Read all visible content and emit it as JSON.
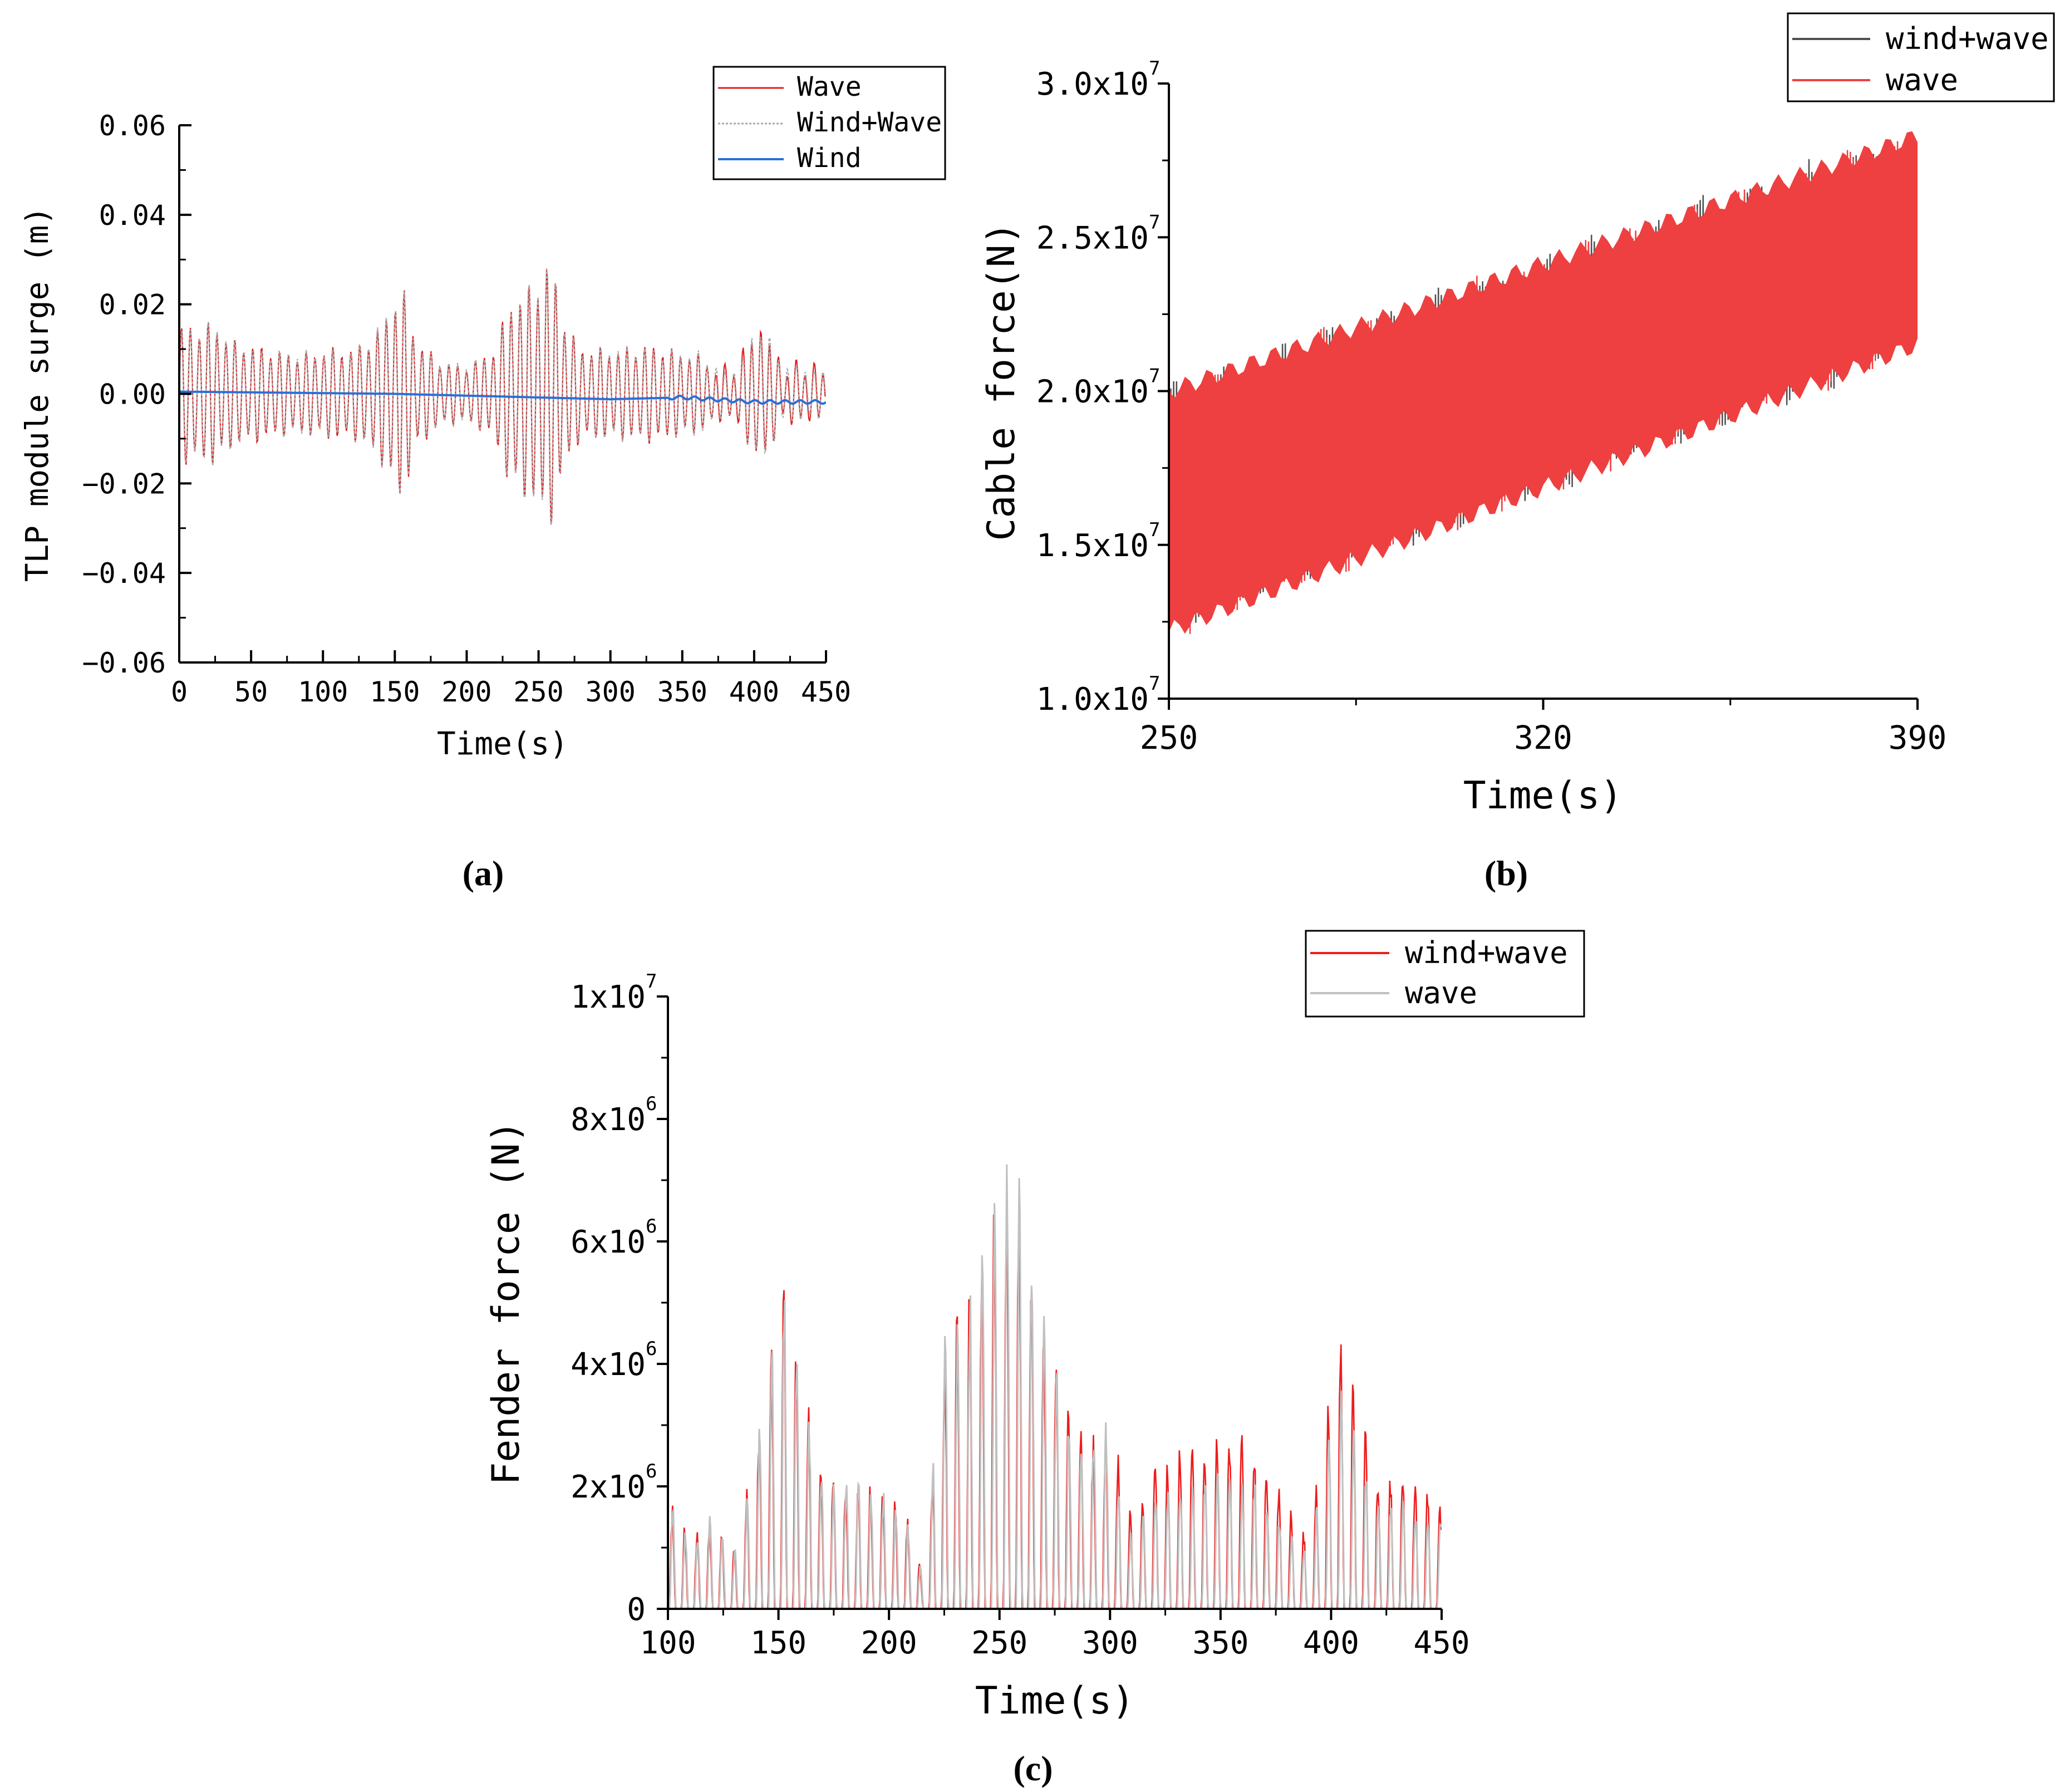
{
  "chart_data": [
    {
      "id": "a",
      "type": "line",
      "caption": "(a)",
      "xlabel": "Time(s)",
      "ylabel": "TLP module surge (m)",
      "xlim": [
        0,
        450
      ],
      "ylim": [
        -0.06,
        0.06
      ],
      "xticks": [
        "0",
        "50",
        "100",
        "150",
        "200",
        "250",
        "300",
        "350",
        "400",
        "450"
      ],
      "yticks": [
        "0.06",
        "0.04",
        "0.02",
        "0.00",
        "−0.02",
        "−0.04",
        "−0.06"
      ],
      "series": [
        {
          "name": "Wave",
          "color": "#e02020"
        },
        {
          "name": "Wind+Wave",
          "color": "#a8a8a8"
        },
        {
          "name": "Wind",
          "color": "#2a6fd8"
        }
      ],
      "envelope": {
        "x": [
          0,
          10,
          25,
          40,
          60,
          80,
          100,
          120,
          140,
          150,
          155,
          165,
          180,
          200,
          220,
          230,
          245,
          255,
          260,
          270,
          280,
          300,
          320,
          340,
          360,
          380,
          390,
          400,
          405,
          420,
          440,
          450
        ],
        "amplitude": [
          0.015,
          0.016,
          0.017,
          0.012,
          0.01,
          0.01,
          0.01,
          0.01,
          0.016,
          0.024,
          0.025,
          0.012,
          0.008,
          0.007,
          0.01,
          0.022,
          0.026,
          0.031,
          0.03,
          0.015,
          0.01,
          0.011,
          0.011,
          0.01,
          0.01,
          0.005,
          0.007,
          0.015,
          0.017,
          0.007,
          0.006,
          0.005
        ]
      },
      "wind_drift": {
        "x": [
          0,
          150,
          250,
          300,
          350,
          400,
          450
        ],
        "y": [
          0.0005,
          0.0,
          -0.0008,
          -0.0012,
          -0.0008,
          -0.0018,
          -0.0018
        ]
      }
    },
    {
      "id": "b",
      "type": "line",
      "caption": "(b)",
      "xlabel": "Time(s)",
      "ylabel": "Cable force(N)",
      "xlim": [
        250,
        390
      ],
      "ylim": [
        10000000,
        30000000
      ],
      "xticks": [
        "250",
        "320",
        "390"
      ],
      "yticks_mantissa": [
        "3.0x10",
        "2.5x10",
        "2.0x10",
        "1.5x10",
        "1.0x10"
      ],
      "yticks_exponent": "7",
      "series": [
        {
          "name": "wind+wave",
          "color": "#505050"
        },
        {
          "name": "wave",
          "color": "#ee4040"
        }
      ],
      "band": {
        "x": [
          250,
          390
        ],
        "upper": [
          20500000,
          28800000
        ],
        "lower": [
          11700000,
          21000000
        ]
      }
    },
    {
      "id": "c",
      "type": "line",
      "caption": "(c)",
      "xlabel": "Time(s)",
      "ylabel": "Fender force (N)",
      "xlim": [
        100,
        450
      ],
      "ylim": [
        0,
        10000000
      ],
      "xticks": [
        "100",
        "150",
        "200",
        "250",
        "300",
        "350",
        "400",
        "450"
      ],
      "yticks_mantissa": [
        "1x10",
        "8x10",
        "6x10",
        "4x10",
        "2x10"
      ],
      "yticks_exponent": [
        "7",
        "6",
        "6",
        "6",
        "6"
      ],
      "ytick_zero": "0",
      "series": [
        {
          "name": "wind+wave",
          "color": "#ee1c1c"
        },
        {
          "name": "wave",
          "color": "#c0c0c0"
        }
      ],
      "envelope": {
        "x": [
          100,
          110,
          120,
          130,
          140,
          150,
          155,
          160,
          170,
          180,
          200,
          210,
          215,
          225,
          240,
          250,
          255,
          260,
          270,
          280,
          290,
          300,
          310,
          320,
          340,
          355,
          365,
          380,
          390,
          400,
          403,
          410,
          420,
          440,
          450
        ],
        "peak": [
          1900000,
          1200000,
          1600000,
          1000000,
          2800000,
          5300000,
          5500000,
          4000000,
          2300000,
          2200000,
          2000000,
          1400000,
          600000,
          4500000,
          5700000,
          7300000,
          7600000,
          7000000,
          5000000,
          3500000,
          2800000,
          3200000,
          1500000,
          2600000,
          2800000,
          3000000,
          2800000,
          1800000,
          1200000,
          4000000,
          4700000,
          3900000,
          2300000,
          2200000,
          1800000
        ]
      }
    }
  ]
}
